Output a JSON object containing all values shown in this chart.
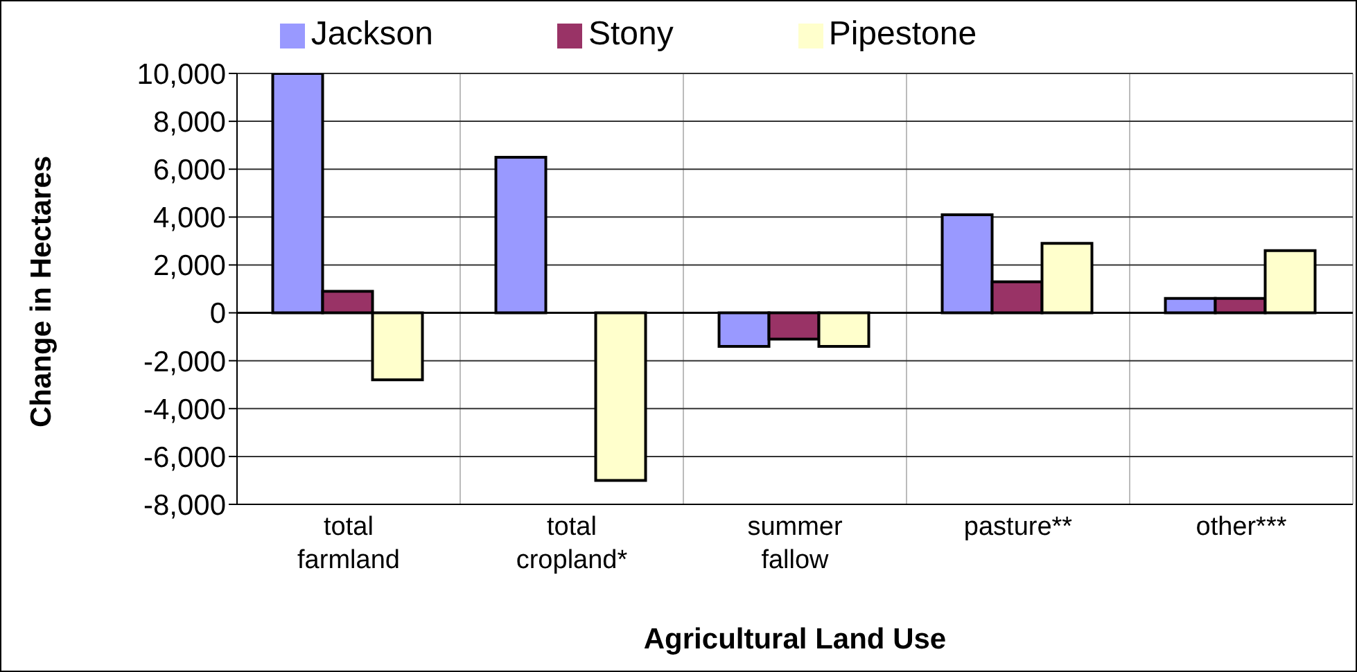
{
  "chart_data": {
    "type": "bar",
    "xlabel": "Agricultural Land Use",
    "ylabel": "Change in Hectares",
    "categories": [
      "total farmland",
      "total cropland*",
      "summer fallow",
      "pasture**",
      "other***"
    ],
    "series": [
      {
        "name": "Jackson",
        "color": "#9999ff",
        "values": [
          10000,
          6500,
          -1400,
          4100,
          600
        ]
      },
      {
        "name": "Stony",
        "color": "#993366",
        "values": [
          900,
          0,
          -1100,
          1300,
          600
        ]
      },
      {
        "name": "Pipestone",
        "color": "#ffffcc",
        "values": [
          -2800,
          -7000,
          -1400,
          2900,
          2600
        ]
      }
    ],
    "ylim": [
      -8000,
      10000
    ],
    "yticks": [
      {
        "value": -8000,
        "label": "-8,000"
      },
      {
        "value": -6000,
        "label": "-6,000"
      },
      {
        "value": -4000,
        "label": "-4,000"
      },
      {
        "value": -2000,
        "label": "-2,000"
      },
      {
        "value": 0,
        "label": "0"
      },
      {
        "value": 2000,
        "label": "2,000"
      },
      {
        "value": 4000,
        "label": "4,000"
      },
      {
        "value": 6000,
        "label": "6,000"
      },
      {
        "value": 8000,
        "label": "8,000"
      },
      {
        "value": 10000,
        "label": "10,000"
      }
    ],
    "grid": true,
    "legend": "top"
  }
}
